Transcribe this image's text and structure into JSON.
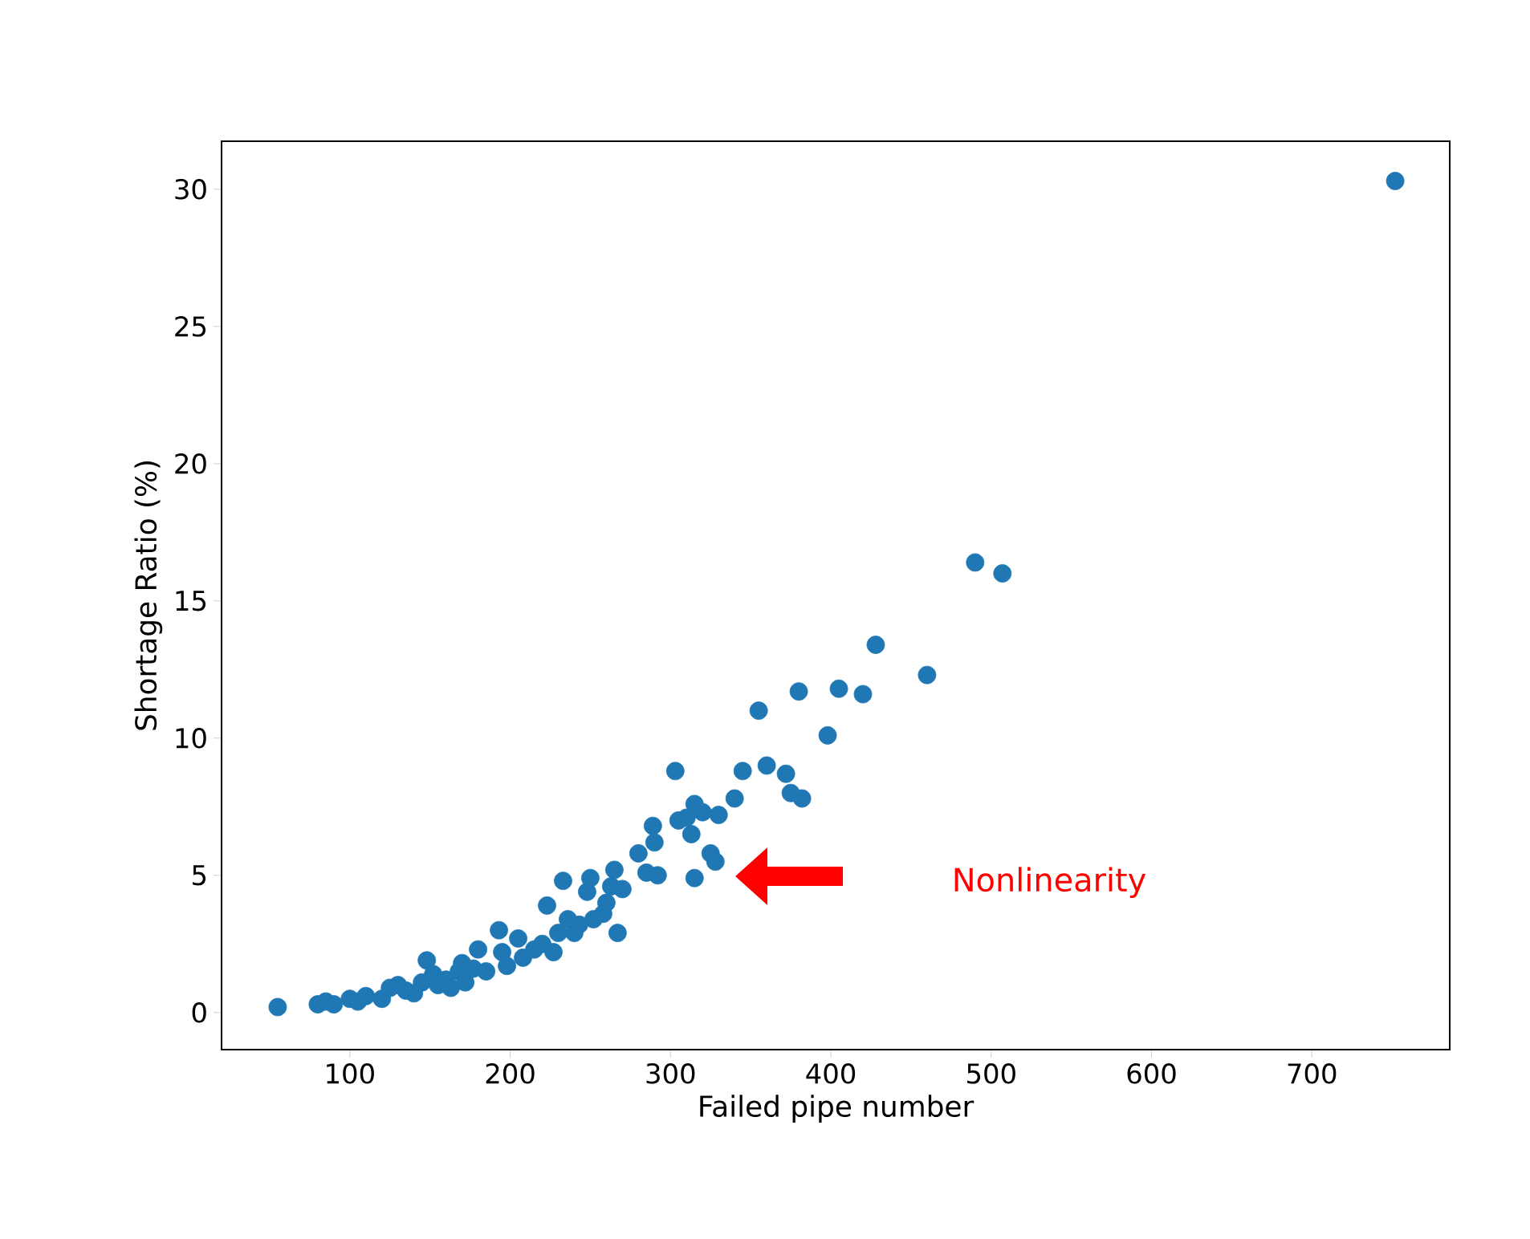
{
  "chart_data": {
    "type": "scatter",
    "xlabel": "Failed pipe number",
    "ylabel": "Shortage Ratio (%)",
    "xlim": [
      20,
      786
    ],
    "ylim": [
      -1.35,
      31.75
    ],
    "xticks": [
      100,
      200,
      300,
      400,
      500,
      600,
      700
    ],
    "yticks": [
      0,
      5,
      10,
      15,
      20,
      25,
      30
    ],
    "annotations": [
      "Nonlinearity"
    ],
    "series": [
      {
        "color": "#1f77b4",
        "x": [
          55,
          80,
          85,
          90,
          100,
          105,
          110,
          120,
          125,
          130,
          135,
          140,
          145,
          148,
          152,
          155,
          160,
          163,
          168,
          170,
          172,
          177,
          180,
          185,
          193,
          195,
          198,
          205,
          208,
          215,
          220,
          223,
          227,
          230,
          233,
          236,
          240,
          243,
          248,
          250,
          252,
          258,
          260,
          263,
          265,
          267,
          270,
          280,
          285,
          289,
          290,
          292,
          303,
          305,
          310,
          313,
          315,
          315,
          320,
          325,
          328,
          330,
          340,
          345,
          355,
          360,
          372,
          375,
          380,
          382,
          398,
          405,
          420,
          428,
          460,
          490,
          507,
          752
        ],
        "values": [
          0.2,
          0.3,
          0.4,
          0.3,
          0.5,
          0.4,
          0.6,
          0.5,
          0.9,
          1.0,
          0.8,
          0.7,
          1.1,
          1.9,
          1.4,
          1.0,
          1.2,
          0.9,
          1.5,
          1.8,
          1.1,
          1.6,
          2.3,
          1.5,
          3.0,
          2.2,
          1.7,
          2.7,
          2.0,
          2.3,
          2.5,
          3.9,
          2.2,
          2.9,
          4.8,
          3.4,
          2.9,
          3.2,
          4.4,
          4.9,
          3.4,
          3.6,
          4.0,
          4.6,
          5.2,
          2.9,
          4.5,
          5.8,
          5.1,
          6.8,
          6.2,
          5.0,
          8.8,
          7.0,
          7.1,
          6.5,
          7.6,
          4.9,
          7.3,
          5.8,
          5.5,
          7.2,
          7.8,
          8.8,
          11.0,
          9.0,
          8.7,
          8.0,
          11.7,
          7.8,
          10.1,
          11.8,
          11.6,
          13.4,
          12.3,
          16.4,
          16.0,
          30.3
        ]
      }
    ]
  }
}
